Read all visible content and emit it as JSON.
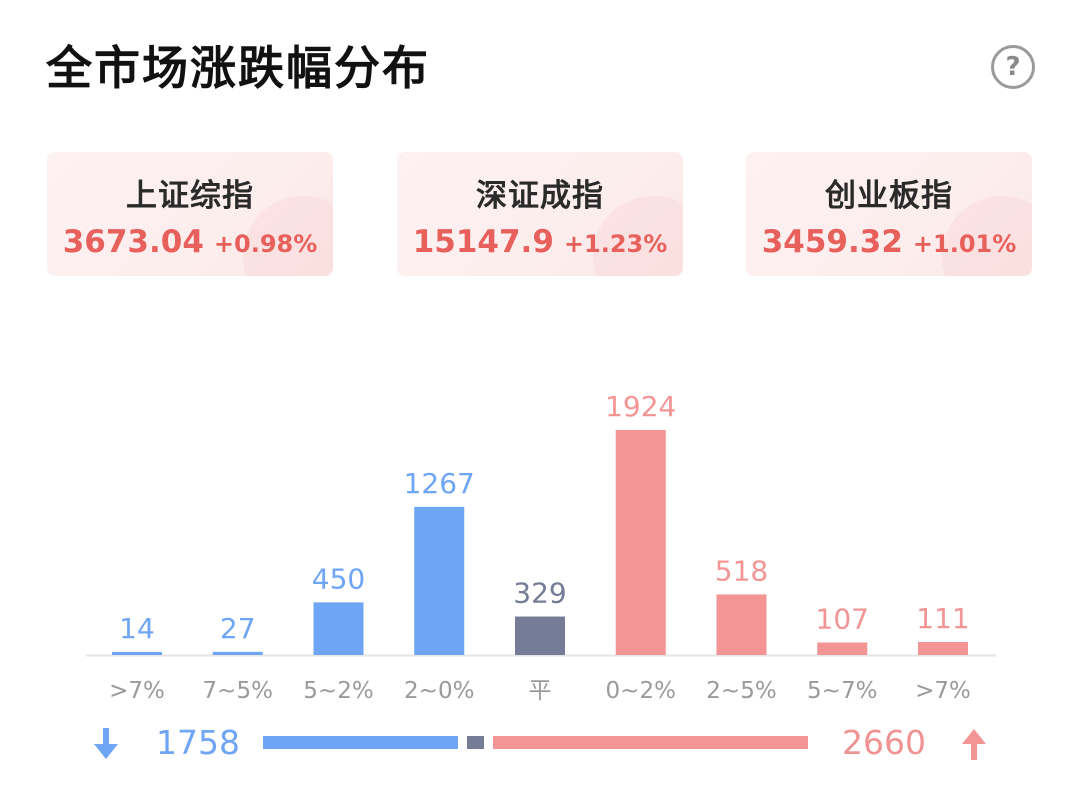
{
  "header": {
    "title": "全市场涨跌幅分布",
    "help_icon": "question-circle-icon",
    "help_glyph": "?"
  },
  "indices": [
    {
      "name": "上证综指",
      "value": "3673.04",
      "change": "+0.98%"
    },
    {
      "name": "深证成指",
      "value": "15147.9",
      "change": "+1.23%"
    },
    {
      "name": "创业板指",
      "value": "3459.32",
      "change": "+1.01%"
    }
  ],
  "colors": {
    "down": "#6fa5f5",
    "flat": "#747d95",
    "up": "#f49595",
    "up_text": "#e8605c",
    "axis": "#e6e6e6",
    "tick_text": "#9a9a9a"
  },
  "chart_data": {
    "type": "bar",
    "categories": [
      ">7%",
      "7~5%",
      "5~2%",
      "2~0%",
      "平",
      "0~2%",
      "2~5%",
      "5~7%",
      ">7%"
    ],
    "values": [
      14,
      27,
      450,
      1267,
      329,
      1924,
      518,
      107,
      111
    ],
    "groups": [
      "down",
      "down",
      "down",
      "down",
      "flat",
      "up",
      "up",
      "up",
      "up"
    ],
    "title": "",
    "xlabel": "",
    "ylabel": "",
    "ylim": [
      0,
      1924
    ],
    "grid": false,
    "legend": "none"
  },
  "summary": {
    "down_total": "1758",
    "up_total": "2660",
    "down_count": 1758,
    "flat_count": 329,
    "up_count": 2660,
    "down_icon": "arrow-down-icon",
    "up_icon": "arrow-up-icon"
  }
}
